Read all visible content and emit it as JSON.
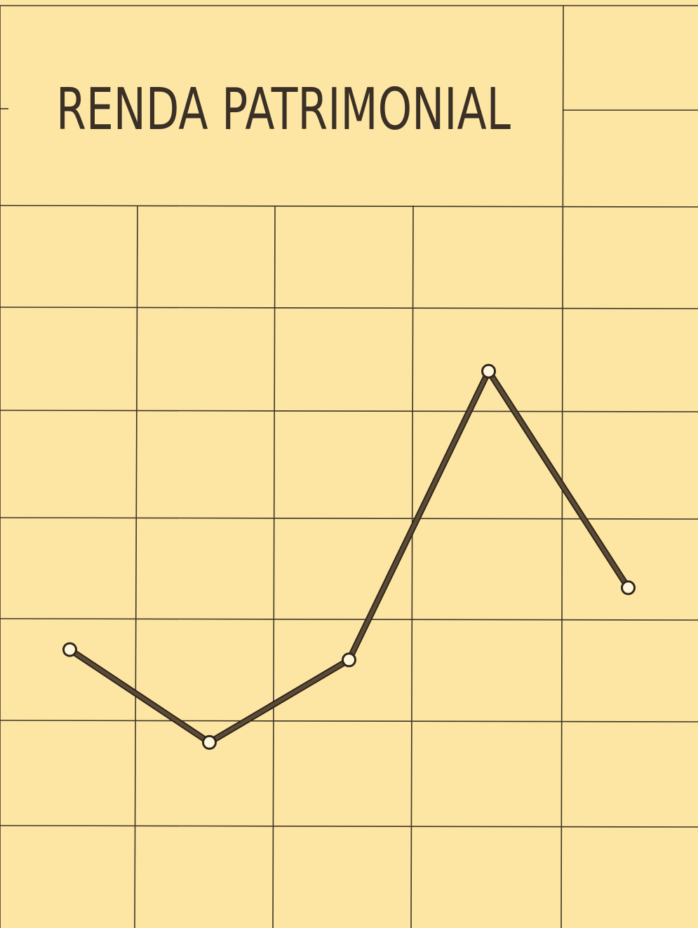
{
  "chart_data": {
    "type": "line",
    "title": "RENDA PATRIMONIAL",
    "categories": [
      null,
      null,
      null,
      null,
      null
    ],
    "values": [
      2.7,
      1.8,
      2.6,
      5.4,
      3.3
    ],
    "color": "#5b4b36",
    "ylim": [
      0,
      9
    ]
  }
}
